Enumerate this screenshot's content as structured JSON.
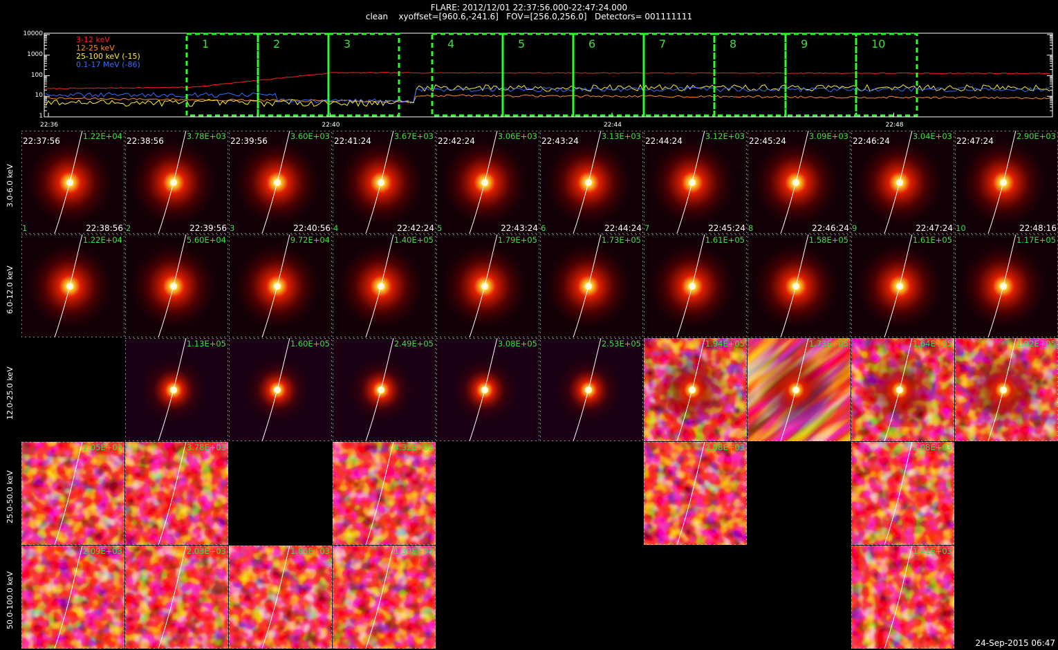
{
  "header": {
    "title": "FLARE: 2012/12/01 22:37:56.000-22:47:24.000",
    "subtitle": "clean    xyoffset=[960.6,-241.6]   FOV=[256.0,256.0]   Detectors= 001111111"
  },
  "chart_data": {
    "type": "line",
    "yscale": "log",
    "yticks": [
      "10000",
      "1000",
      "100",
      "10",
      "1"
    ],
    "xticks": [
      "22:36",
      "22:40",
      "22:44",
      "22:48"
    ],
    "series": [
      {
        "name": "3-12 keV",
        "color": "#ff2020"
      },
      {
        "name": "12-25 keV",
        "color": "#ff8c1a"
      },
      {
        "name": "25-100 keV (-15)",
        "color": "#ffee33"
      },
      {
        "name": "0.1-17 MeV (-86)",
        "color": "#3a6cff"
      }
    ],
    "intervals": [
      "1",
      "2",
      "3",
      "4",
      "5",
      "6",
      "7",
      "8",
      "9",
      "10"
    ]
  },
  "rows": [
    {
      "label": "3.0-6.0 keV",
      "panels": [
        {
          "max": "1.22E+04",
          "t1": "22:37:56",
          "idx": "1",
          "t2": "22:38:56",
          "kind": "low"
        },
        {
          "max": "3.78E+03",
          "t1": "22:38:56",
          "idx": "2",
          "t2": "22:39:56",
          "kind": "low"
        },
        {
          "max": "3.60E+03",
          "t1": "22:39:56",
          "idx": "3",
          "t2": "22:40:56",
          "kind": "low"
        },
        {
          "max": "3.67E+03",
          "t1": "22:41:24",
          "idx": "4",
          "t2": "22:42:24",
          "kind": "low"
        },
        {
          "max": "3.06E+03",
          "t1": "22:42:24",
          "idx": "5",
          "t2": "22:43:24",
          "kind": "low"
        },
        {
          "max": "3.13E+03",
          "t1": "22:43:24",
          "idx": "6",
          "t2": "22:44:24",
          "kind": "low"
        },
        {
          "max": "3.12E+03",
          "t1": "22:44:24",
          "idx": "7",
          "t2": "22:45:24",
          "kind": "low"
        },
        {
          "max": "3.09E+03",
          "t1": "22:45:24",
          "idx": "8",
          "t2": "22:46:24",
          "kind": "low"
        },
        {
          "max": "3.04E+03",
          "t1": "22:46:24",
          "idx": "9",
          "t2": "22:47:24",
          "kind": "low"
        },
        {
          "max": "2.90E+03",
          "t1": "22:47:24",
          "idx": "10",
          "t2": "22:48:16",
          "kind": "low"
        }
      ]
    },
    {
      "label": "6.0-12.0 keV",
      "panels": [
        {
          "max": "1.22E+04",
          "kind": "low"
        },
        {
          "max": "5.60E+04",
          "kind": "low"
        },
        {
          "max": "9.72E+04",
          "kind": "low"
        },
        {
          "max": "1.40E+05",
          "kind": "low"
        },
        {
          "max": "1.79E+05",
          "kind": "low"
        },
        {
          "max": "1.73E+05",
          "kind": "low"
        },
        {
          "max": "1.61E+05",
          "kind": "low"
        },
        {
          "max": "1.58E+05",
          "kind": "low"
        },
        {
          "max": "1.61E+05",
          "kind": "low"
        },
        {
          "max": "1.17E+05",
          "kind": "low"
        }
      ]
    },
    {
      "label": "12.0-25.0 keV",
      "panels": [
        null,
        {
          "max": "1.13E+05",
          "kind": "mid"
        },
        {
          "max": "1.60E+05",
          "kind": "mid"
        },
        {
          "max": "2.49E+05",
          "kind": "mid"
        },
        {
          "max": "3.08E+05",
          "kind": "mid"
        },
        {
          "max": "2.53E+05",
          "kind": "mid"
        },
        {
          "max": "1.94E+05",
          "kind": "noisy"
        },
        {
          "max": "1.73E+05",
          "kind": "stripes"
        },
        {
          "max": "1.64E+05",
          "kind": "noisy"
        },
        {
          "max": "1.02E+05",
          "kind": "noisy"
        }
      ]
    },
    {
      "label": "25.0-50.0 keV",
      "panels": [
        {
          "max": "2.05E+03",
          "kind": "noise"
        },
        {
          "max": "3.78E+03",
          "kind": "noise"
        },
        null,
        {
          "max": "4.32E+03",
          "kind": "noise"
        },
        null,
        null,
        {
          "max": "2.58E+03",
          "kind": "noise"
        },
        null,
        {
          "max": "2.08E+03",
          "kind": "noise"
        },
        null
      ]
    },
    {
      "label": "50.0-100.0 keV",
      "panels": [
        {
          "max": "2.09E+03",
          "kind": "noise"
        },
        {
          "max": "2.03E+03",
          "kind": "noise"
        },
        {
          "max": "1.86E+03",
          "kind": "noise"
        },
        {
          "max": "1.39E+03",
          "kind": "noise"
        },
        null,
        null,
        null,
        null,
        {
          "max": "1.41E+03",
          "kind": "noise"
        },
        null
      ]
    }
  ],
  "footer": {
    "stamp": "24-Sep-2015 06:47"
  }
}
